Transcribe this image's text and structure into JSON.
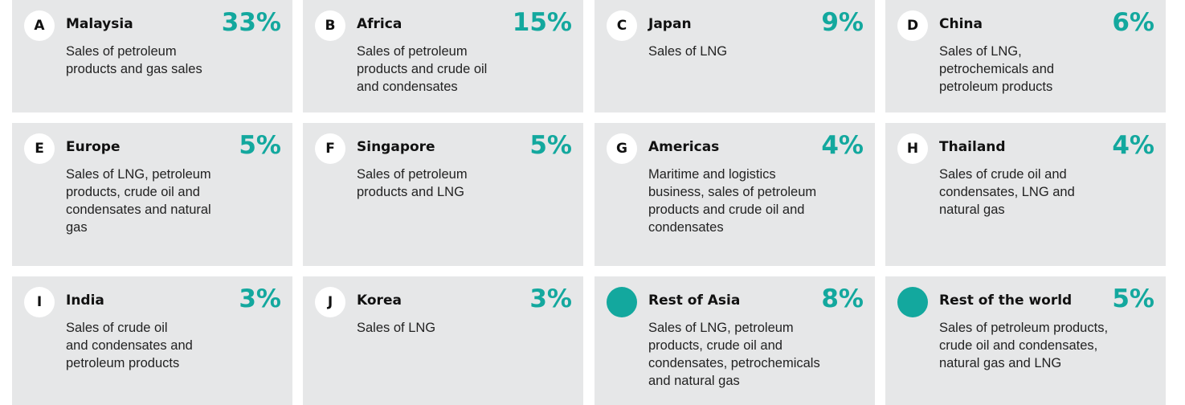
{
  "cards": [
    {
      "letter": "A",
      "name": "Malaysia",
      "percent": "33%",
      "description": [
        "Sales of petroleum",
        "products and gas sales"
      ]
    },
    {
      "letter": "B",
      "name": "Africa",
      "percent": "15%",
      "description": [
        "Sales of petroleum",
        "products and crude oil",
        "and condensates"
      ]
    },
    {
      "letter": "C",
      "name": "Japan",
      "percent": "9%",
      "description": [
        "Sales of LNG"
      ]
    },
    {
      "letter": "D",
      "name": "China",
      "percent": "6%",
      "description": [
        "Sales of LNG,",
        "petrochemicals and",
        "petroleum products"
      ]
    },
    {
      "letter": "E",
      "name": "Europe",
      "percent": "5%",
      "description": [
        "Sales of LNG, petroleum",
        "products, crude oil and",
        "condensates and natural",
        "gas"
      ]
    },
    {
      "letter": "F",
      "name": "Singapore",
      "percent": "5%",
      "description": [
        "Sales of petroleum",
        "products and LNG"
      ]
    },
    {
      "letter": "G",
      "name": "Americas",
      "percent": "4%",
      "description": [
        "Maritime and logistics",
        "business, sales of petroleum",
        "products and crude oil and",
        "condensates"
      ]
    },
    {
      "letter": "H",
      "name": "Thailand",
      "percent": "4%",
      "description": [
        "Sales of crude oil and",
        "condensates, LNG and",
        "natural gas"
      ]
    },
    {
      "letter": "I",
      "name": "India",
      "percent": "3%",
      "description": [
        "Sales of crude oil",
        "and condensates and",
        "petroleum products"
      ]
    },
    {
      "letter": "J",
      "name": "Korea",
      "percent": "3%",
      "description": [
        "Sales of LNG"
      ]
    },
    {
      "name": "Rest of Asia",
      "percent": "8%",
      "description": [
        "Sales of LNG, petroleum",
        "products, crude oil and",
        "condensates, petrochemicals",
        "and natural gas"
      ]
    },
    {
      "name": "Rest of the world",
      "percent": "5%",
      "description": [
        "Sales of petroleum products,",
        "crude oil and condensates,",
        "natural gas and LNG"
      ]
    }
  ]
}
